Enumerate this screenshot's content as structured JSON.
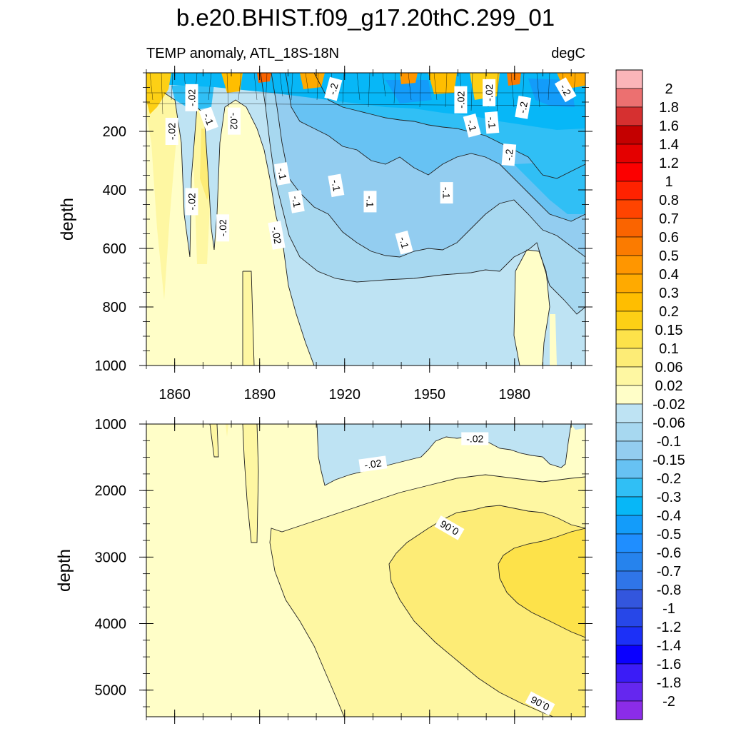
{
  "chart_data": {
    "type": "contour",
    "title": "b.e20.BHIST.f09_g17.20thC.299_01",
    "variable": "TEMP anomaly, ATL_18S-18N",
    "units": "degC",
    "x_range": [
      1850,
      2005
    ],
    "x_ticks": [
      1860,
      1890,
      1920,
      1950,
      1980
    ],
    "panels": [
      {
        "name": "upper",
        "ylabel": "depth",
        "y_range": [
          0,
          1000
        ],
        "y_ticks": [
          200,
          400,
          600,
          800,
          1000
        ],
        "y_reversed": true,
        "contour_labels": [
          {
            "text": "-.02",
            "year": 1866,
            "depth": 85,
            "rot": -90
          },
          {
            "text": "-.02",
            "year": 1859,
            "depth": 200,
            "rot": -90
          },
          {
            "text": "-.02",
            "year": 1881,
            "depth": 165,
            "rot": 90
          },
          {
            "text": "-.2",
            "year": 1916,
            "depth": 55,
            "rot": -75
          },
          {
            "text": "-.02",
            "year": 1961,
            "depth": 92,
            "rot": -90
          },
          {
            "text": "-.02",
            "year": 1971,
            "depth": 68,
            "rot": -90
          },
          {
            "text": "-.2",
            "year": 1998,
            "depth": 58,
            "rot": 60
          },
          {
            "text": "-.2",
            "year": 1983,
            "depth": 118,
            "rot": -80
          },
          {
            "text": "-.1",
            "year": 1872,
            "depth": 158,
            "rot": 70
          },
          {
            "text": "-.1",
            "year": 1965,
            "depth": 180,
            "rot": 75
          },
          {
            "text": "-.1",
            "year": 1972,
            "depth": 170,
            "rot": 85
          },
          {
            "text": "-.2",
            "year": 1978,
            "depth": 280,
            "rot": -85
          },
          {
            "text": "-.1",
            "year": 1898,
            "depth": 345,
            "rot": 80
          },
          {
            "text": "-.1",
            "year": 1917,
            "depth": 385,
            "rot": 80
          },
          {
            "text": "-.1",
            "year": 1903,
            "depth": 440,
            "rot": 80
          },
          {
            "text": "-.1",
            "year": 1929,
            "depth": 440,
            "rot": 90
          },
          {
            "text": "-.1",
            "year": 1956,
            "depth": 410,
            "rot": 90
          },
          {
            "text": "-.02",
            "year": 1866,
            "depth": 440,
            "rot": -90
          },
          {
            "text": "-.02",
            "year": 1877,
            "depth": 530,
            "rot": -90
          },
          {
            "text": "-.02",
            "year": 1896,
            "depth": 555,
            "rot": 80
          },
          {
            "text": "-.1",
            "year": 1941,
            "depth": 580,
            "rot": 75
          }
        ]
      },
      {
        "name": "lower",
        "ylabel": "depth",
        "y_range": [
          1000,
          5400
        ],
        "y_ticks": [
          1000,
          2000,
          3000,
          4000,
          5000
        ],
        "y_reversed": true,
        "contour_labels": [
          {
            "text": "-.02",
            "year": 1966,
            "depth": 1220,
            "rot": 0
          },
          {
            "text": "-.02",
            "year": 1930,
            "depth": 1600,
            "rot": -8
          },
          {
            "text": "0.06",
            "year": 1957,
            "depth": 2560,
            "rot": 210
          },
          {
            "text": "0.06",
            "year": 1989,
            "depth": 5200,
            "rot": 208
          }
        ]
      }
    ],
    "colorbar": {
      "labels": [
        "2",
        "1.8",
        "1.6",
        "1.4",
        "1.2",
        "1",
        "0.8",
        "0.7",
        "0.6",
        "0.5",
        "0.4",
        "0.3",
        "0.2",
        "0.15",
        "0.1",
        "0.06",
        "0.02",
        "-0.02",
        "-0.06",
        "-0.1",
        "-0.15",
        "-0.2",
        "-0.3",
        "-0.4",
        "-0.5",
        "-0.6",
        "-0.7",
        "-0.8",
        "-1",
        "-1.2",
        "-1.4",
        "-1.6",
        "-1.8",
        "-2"
      ],
      "colors": [
        "#fbb5b9",
        "#ec7070",
        "#d63030",
        "#c40000",
        "#e40000",
        "#fc0000",
        "#ff2200",
        "#ff4400",
        "#fa6400",
        "#fb7b00",
        "#ff9600",
        "#ffaa00",
        "#ffbe00",
        "#fdd015",
        "#fde24a",
        "#fdec76",
        "#fef7a2",
        "#fffec8",
        "#bee3f3",
        "#a7d8f0",
        "#93cdf0",
        "#67c2f3",
        "#30bff5",
        "#07b7f7",
        "#139cfa",
        "#1f8eff",
        "#2683ed",
        "#2f75e8",
        "#3356dd",
        "#2747e8",
        "#1c30f7",
        "#0a00ff",
        "#3b1cf7",
        "#6527ef",
        "#8b2ce8"
      ]
    }
  }
}
